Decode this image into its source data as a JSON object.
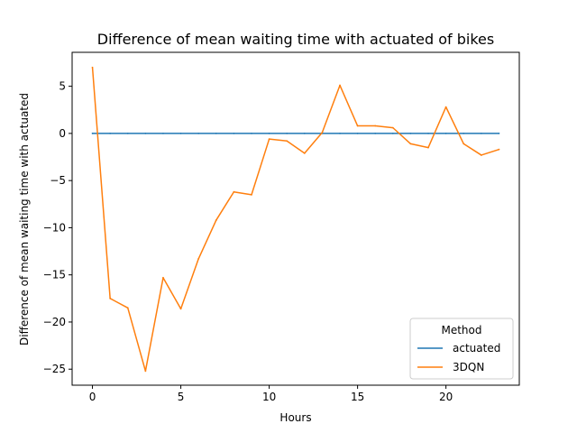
{
  "chart_data": {
    "type": "line",
    "title": "Difference of mean waiting time with actuated of bikes",
    "xlabel": "Hours",
    "ylabel": "Difference of mean waiting time with actuated",
    "xlim": [
      -1.15,
      24.15
    ],
    "ylim": [
      -26.7,
      8.6
    ],
    "xticks": [
      0,
      5,
      10,
      15,
      20
    ],
    "yticks": [
      -25,
      -20,
      -15,
      -10,
      -5,
      0,
      5
    ],
    "x": [
      0,
      1,
      2,
      3,
      4,
      5,
      6,
      7,
      8,
      9,
      10,
      11,
      12,
      13,
      14,
      15,
      16,
      17,
      18,
      19,
      20,
      21,
      22,
      23
    ],
    "series": [
      {
        "name": "actuated",
        "color": "#1f77b4",
        "values": [
          0,
          0,
          0,
          0,
          0,
          0,
          0,
          0,
          0,
          0,
          0,
          0,
          0,
          0,
          0,
          0,
          0,
          0,
          0,
          0,
          0,
          0,
          0,
          0
        ]
      },
      {
        "name": "3DQN",
        "color": "#ff7f0e",
        "values": [
          7.0,
          -17.5,
          -18.5,
          -25.2,
          -15.3,
          -18.6,
          -13.3,
          -9.2,
          -6.2,
          -6.5,
          -0.6,
          -0.8,
          -2.1,
          0.1,
          5.1,
          0.8,
          0.8,
          0.6,
          -1.1,
          -1.5,
          2.8,
          -1.1,
          -2.3,
          -1.7
        ]
      }
    ],
    "legend": {
      "title": "Method",
      "placement": "lower-right"
    },
    "grid": false
  }
}
